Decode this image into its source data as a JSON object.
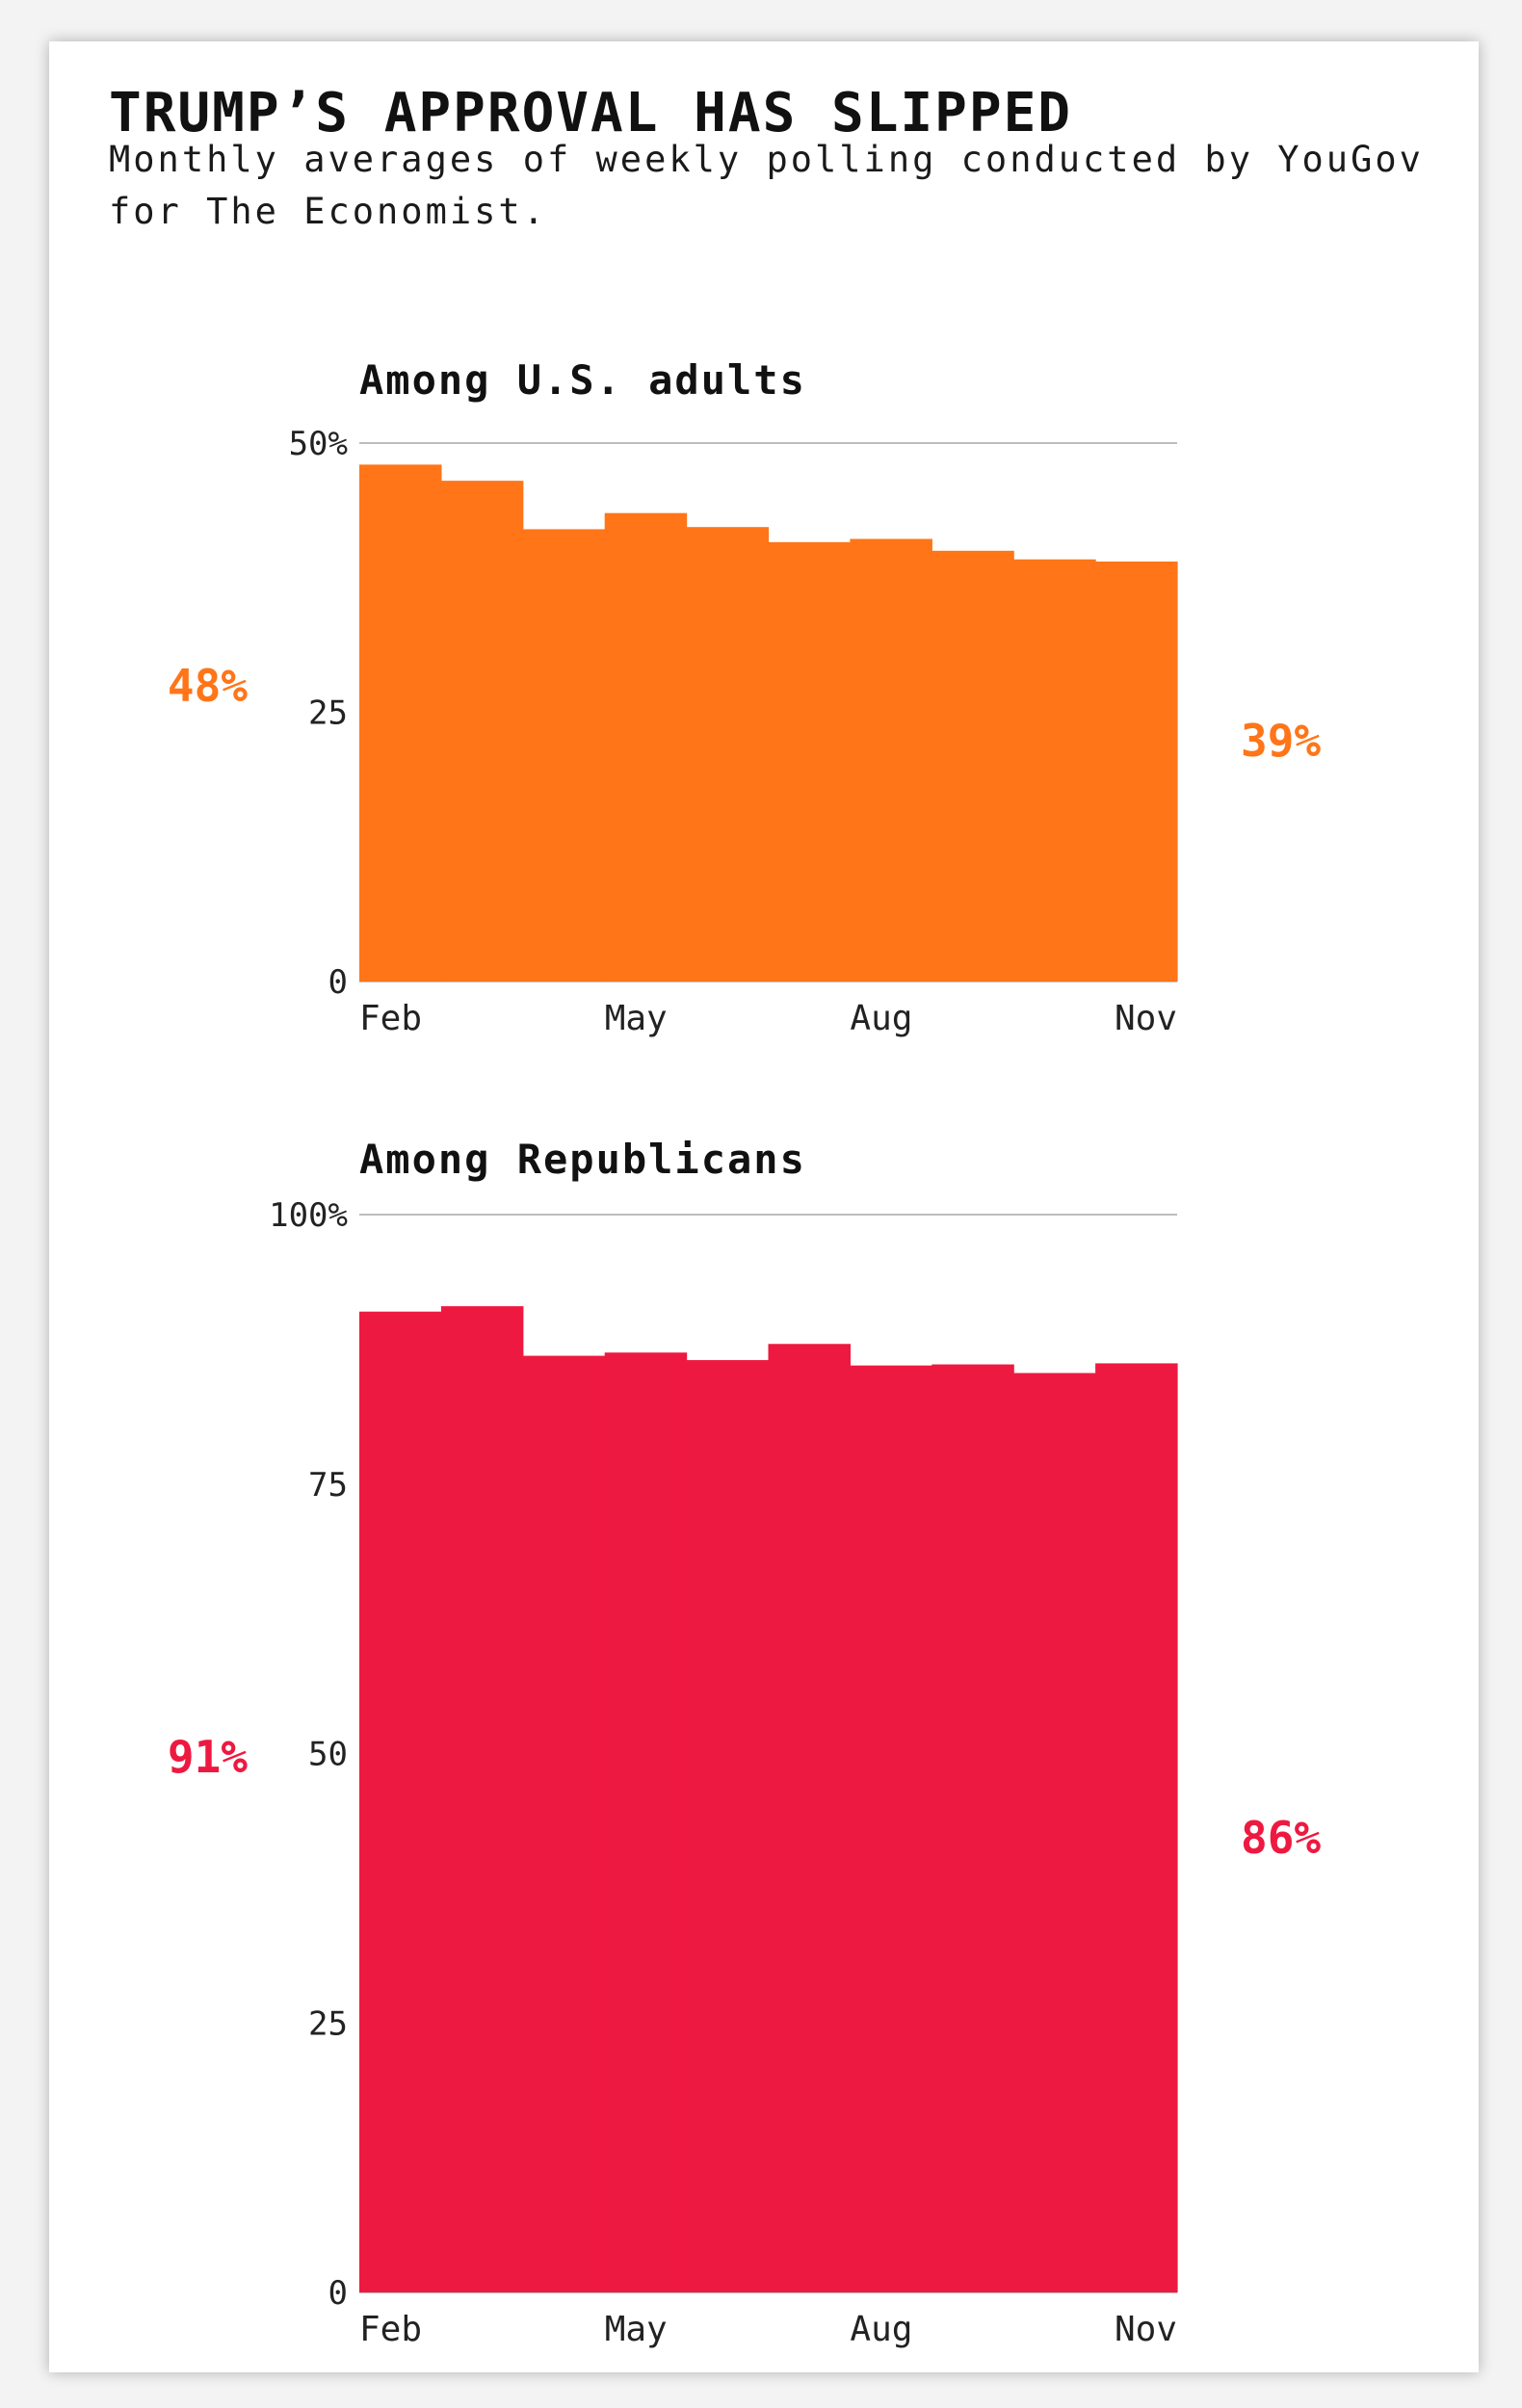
{
  "title": "TRUMP’S APPROVAL HAS SLIPPED",
  "subtitle": "Monthly averages of weekly polling conducted by YouGov for The Economist.",
  "chart_data": [
    {
      "type": "area",
      "title": "Among U.S. adults",
      "color": "#ff7518",
      "categories": [
        "Feb",
        "Mar",
        "Apr",
        "May",
        "Jun",
        "Jul",
        "Aug",
        "Sep",
        "Oct",
        "Nov"
      ],
      "values": [
        48,
        46.5,
        42,
        43.5,
        42.2,
        40.8,
        41.1,
        40,
        39.2,
        39
      ],
      "ylim": [
        0,
        50
      ],
      "yticks": [
        0,
        25,
        50
      ],
      "ytick_labels": [
        "0",
        "25",
        "50%"
      ],
      "xtick_labels": [
        "Feb",
        "May",
        "Aug",
        "Nov"
      ],
      "start_label": "48%",
      "end_label": "39%",
      "grid": true
    },
    {
      "type": "area",
      "title": "Among Republicans",
      "color": "#ee1941",
      "categories": [
        "Feb",
        "Mar",
        "Apr",
        "May",
        "Jun",
        "Jul",
        "Aug",
        "Sep",
        "Oct",
        "Nov"
      ],
      "values": [
        91,
        91.5,
        86.9,
        87.2,
        86.5,
        88,
        86,
        86.1,
        85.3,
        86.2
      ],
      "ylim": [
        0,
        100
      ],
      "yticks": [
        0,
        25,
        50,
        75,
        100
      ],
      "ytick_labels": [
        "0",
        "25",
        "50",
        "75",
        "100%"
      ],
      "xtick_labels": [
        "Feb",
        "May",
        "Aug",
        "Nov"
      ],
      "start_label": "91%",
      "end_label": "86%",
      "grid": true
    }
  ]
}
